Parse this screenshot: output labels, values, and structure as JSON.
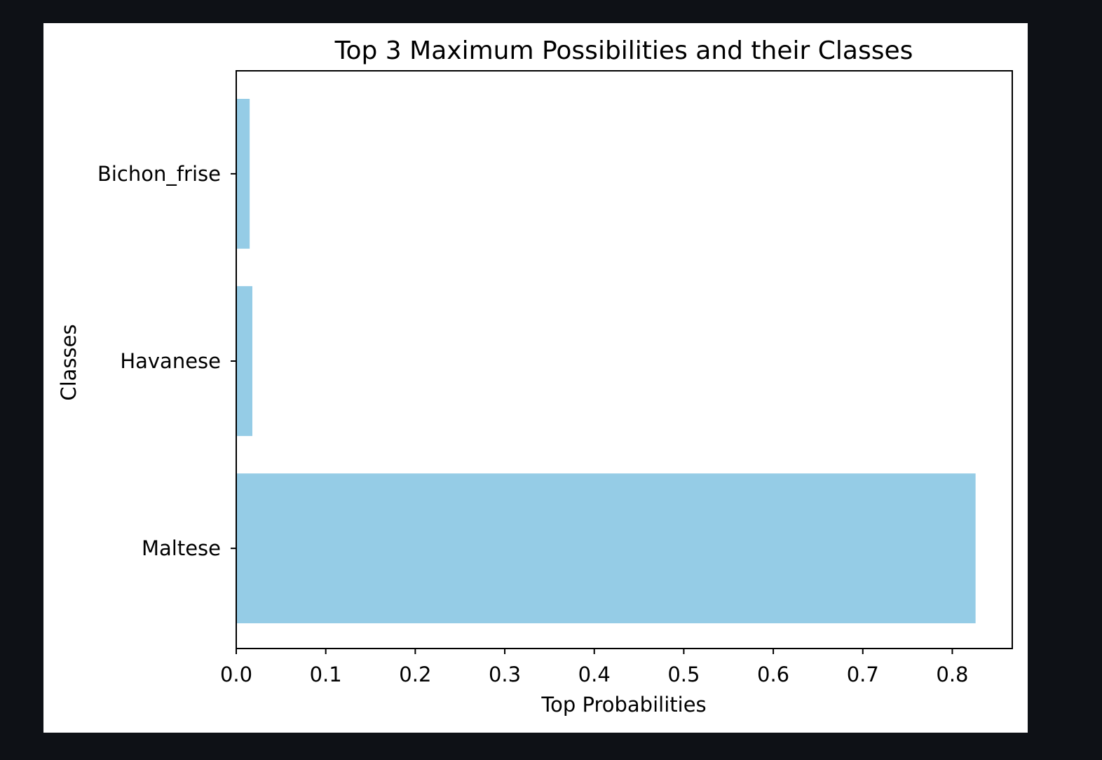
{
  "colors": {
    "page_background": "#0e1116",
    "figure_background": "#ffffff",
    "bar": "#95cce6",
    "axes": "#000000"
  },
  "chart_data": {
    "type": "bar",
    "orientation": "horizontal",
    "title": "Top 3 Maximum Possibilities and their Classes",
    "xlabel": "Top Probabilities",
    "ylabel": "Classes",
    "categories": [
      "Maltese",
      "Havanese",
      "Bichon_frise"
    ],
    "values": [
      0.826,
      0.018,
      0.015
    ],
    "xlim": [
      0,
      0.867
    ],
    "xticks": [
      "0.0",
      "0.1",
      "0.2",
      "0.3",
      "0.4",
      "0.5",
      "0.6",
      "0.7",
      "0.8"
    ],
    "grid": false,
    "legend": false
  }
}
